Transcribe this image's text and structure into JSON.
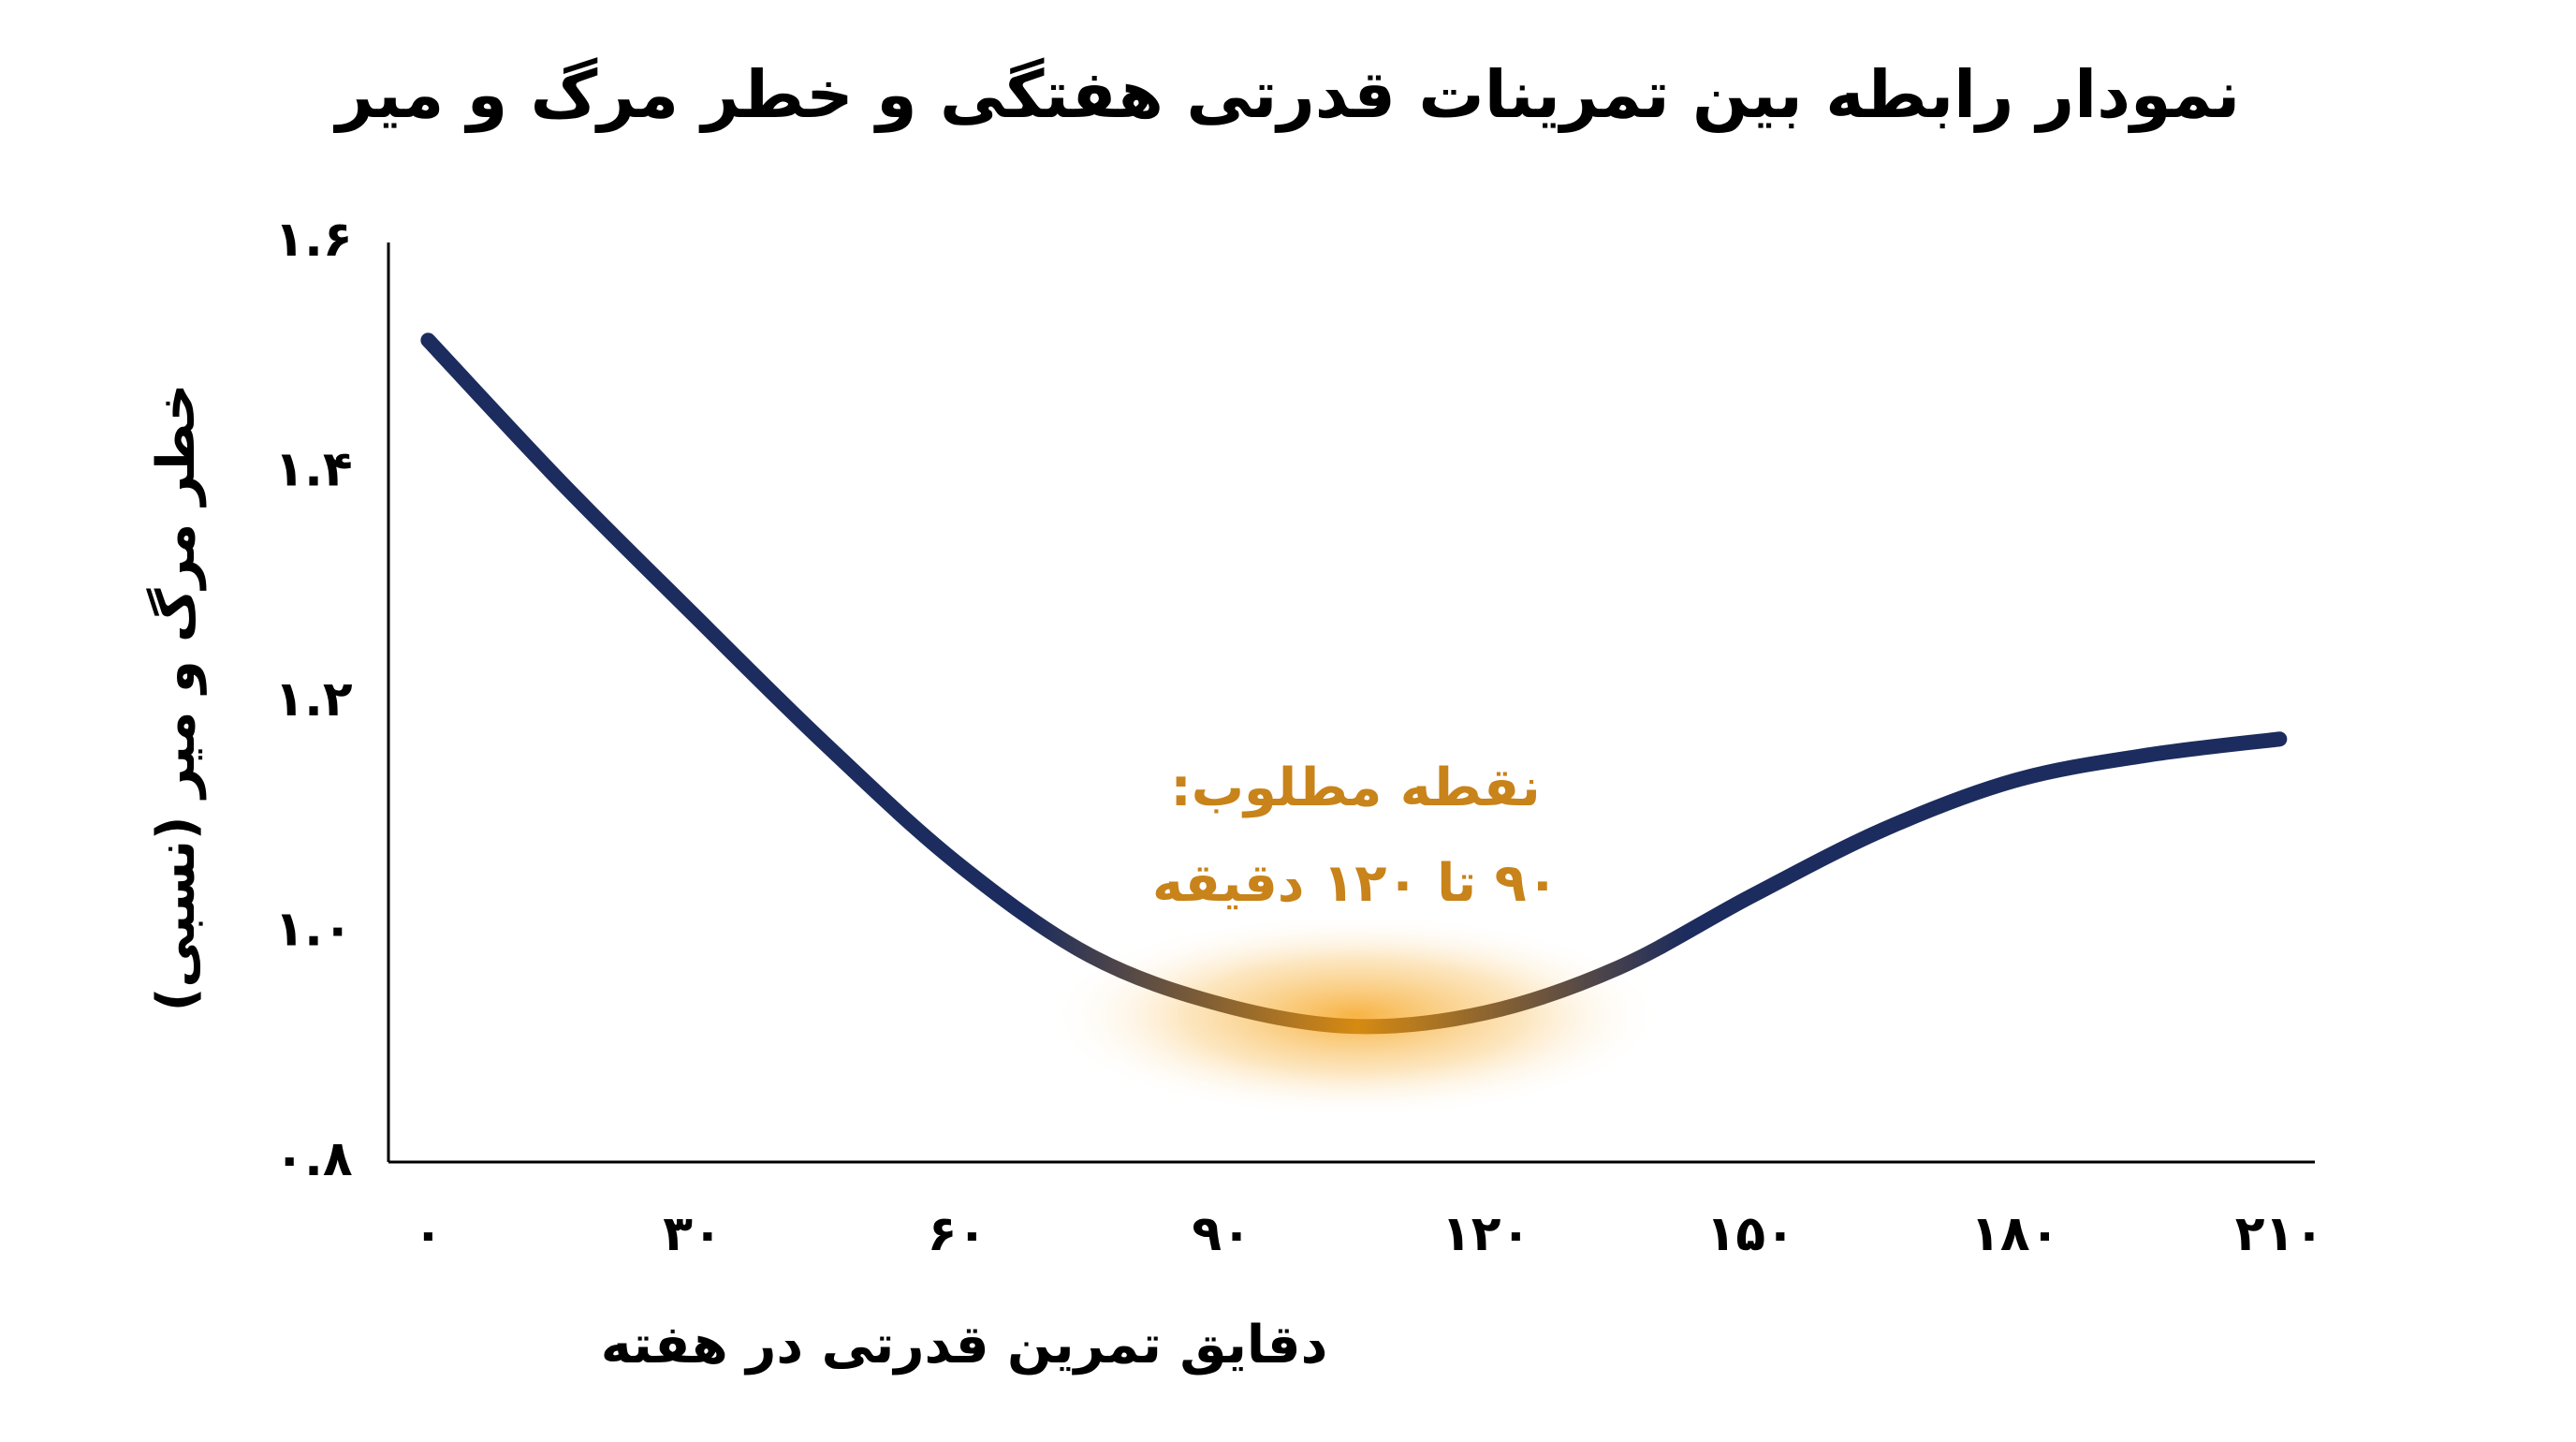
{
  "chart_data": {
    "type": "line",
    "title": "نمودار رابطه بین تمرینات قدرتی هفتگی و خطر مرگ و میر",
    "x_label": "دقایق تمرین قدرتی در هفته",
    "y_label": "خطر مرگ و میر (نسبی)",
    "annotation": [
      "نقطه مطلوب:",
      "۹۰ تا ۱۲۰ دقیقه"
    ],
    "annotation_color": "#c8831a",
    "x": [
      0,
      15,
      30,
      45,
      60,
      75,
      90,
      105,
      120,
      135,
      150,
      165,
      180,
      195,
      210
    ],
    "series": [
      {
        "color": "#1c2c5e",
        "values": [
          1.515,
          1.392,
          1.277,
          1.164,
          1.06,
          0.98,
          0.937,
          0.918,
          0.93,
          0.969,
          1.031,
          1.089,
          1.132,
          1.154,
          1.168
        ]
      }
    ],
    "xlim": [
      -4.5,
      214
    ],
    "ylim": [
      0.8,
      1.6
    ],
    "xticks": [
      {
        "value": 0,
        "label": "۰"
      },
      {
        "value": 30,
        "label": "۳۰"
      },
      {
        "value": 60,
        "label": "۶۰"
      },
      {
        "value": 90,
        "label": "۹۰"
      },
      {
        "value": 120,
        "label": "۱۲۰"
      },
      {
        "value": 150,
        "label": "۱۵۰"
      },
      {
        "value": 180,
        "label": "۱۸۰"
      },
      {
        "value": 210,
        "label": "۲۱۰"
      }
    ],
    "yticks": [
      {
        "value": 0.8,
        "label": "۰.۸"
      },
      {
        "value": 1.0,
        "label": "۱.۰"
      },
      {
        "value": 1.2,
        "label": "۱.۲"
      },
      {
        "value": 1.4,
        "label": "۱.۴"
      },
      {
        "value": 1.6,
        "label": "۱.۶"
      }
    ],
    "grid": false
  }
}
